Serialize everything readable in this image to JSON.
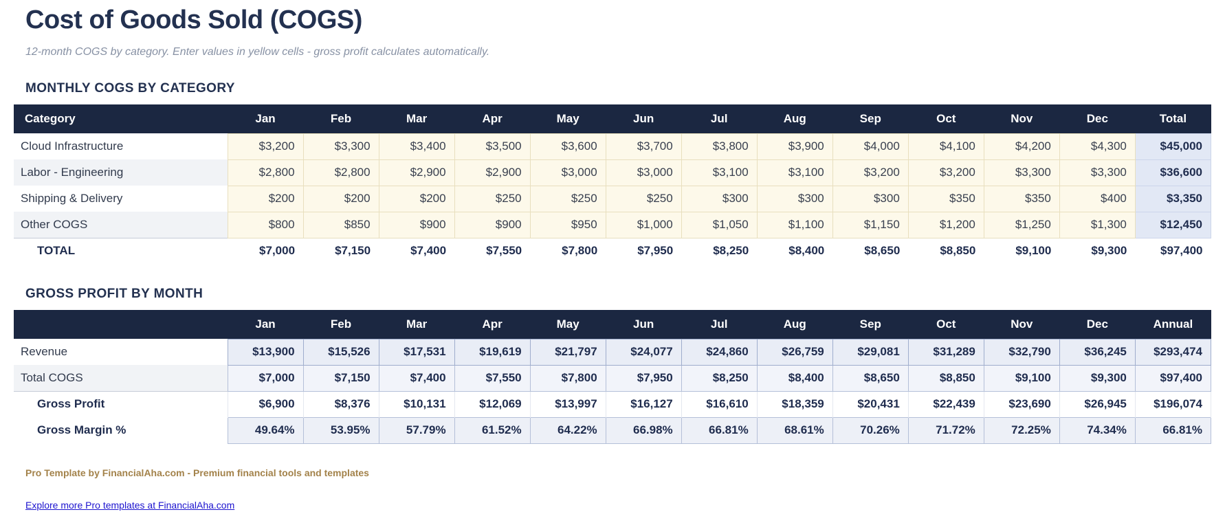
{
  "page": {
    "title": "Cost of Goods Sold (COGS)",
    "subtitle": "12-month COGS by category. Enter values in yellow cells - gross profit calculates automatically."
  },
  "colors": {
    "header_bg": "#1b2741",
    "title_text": "#233150",
    "input_cell_bg": "#fdf9ea",
    "input_cell_border": "#e8dfbe",
    "total_column_bg": "#e2e8f5",
    "alt_row_bg": "#f1f3f6",
    "revenue_cell_bg": "#e9edf6",
    "margin_cell_bg": "#edf0f7",
    "brand_text": "#a3824a",
    "link_text": "#1d14cf"
  },
  "monthly_cogs": {
    "section_title": "MONTHLY COGS BY CATEGORY",
    "columns": [
      "Category",
      "Jan",
      "Feb",
      "Mar",
      "Apr",
      "May",
      "Jun",
      "Jul",
      "Aug",
      "Sep",
      "Oct",
      "Nov",
      "Dec",
      "Total"
    ],
    "rows": [
      {
        "kind": "cat",
        "editable": true,
        "label": "Cloud Infrastructure",
        "values": [
          "$3,200",
          "$3,300",
          "$3,400",
          "$3,500",
          "$3,600",
          "$3,700",
          "$3,800",
          "$3,900",
          "$4,000",
          "$4,100",
          "$4,200",
          "$4,300"
        ],
        "total": "$45,000"
      },
      {
        "kind": "cat",
        "editable": true,
        "label": "Labor - Engineering",
        "values": [
          "$2,800",
          "$2,800",
          "$2,900",
          "$2,900",
          "$3,000",
          "$3,000",
          "$3,100",
          "$3,100",
          "$3,200",
          "$3,200",
          "$3,300",
          "$3,300"
        ],
        "total": "$36,600"
      },
      {
        "kind": "cat",
        "editable": true,
        "label": "Shipping & Delivery",
        "values": [
          "$200",
          "$200",
          "$200",
          "$250",
          "$250",
          "$250",
          "$300",
          "$300",
          "$300",
          "$350",
          "$350",
          "$400"
        ],
        "total": "$3,350"
      },
      {
        "kind": "cat",
        "editable": true,
        "label": "Other COGS",
        "values": [
          "$800",
          "$850",
          "$900",
          "$900",
          "$950",
          "$1,000",
          "$1,050",
          "$1,100",
          "$1,150",
          "$1,200",
          "$1,250",
          "$1,300"
        ],
        "total": "$12,450"
      },
      {
        "kind": "grand",
        "editable": false,
        "label": "TOTAL",
        "values": [
          "$7,000",
          "$7,150",
          "$7,400",
          "$7,550",
          "$7,800",
          "$7,950",
          "$8,250",
          "$8,400",
          "$8,650",
          "$8,850",
          "$9,100",
          "$9,300"
        ],
        "total": "$97,400"
      }
    ]
  },
  "gross_profit": {
    "section_title": "GROSS PROFIT BY MONTH",
    "columns": [
      "",
      "Jan",
      "Feb",
      "Mar",
      "Apr",
      "May",
      "Jun",
      "Jul",
      "Aug",
      "Sep",
      "Oct",
      "Nov",
      "Dec",
      "Annual"
    ],
    "rows": [
      {
        "kind": "revenue",
        "editable": false,
        "label": "Revenue",
        "values": [
          "$13,900",
          "$15,526",
          "$17,531",
          "$19,619",
          "$21,797",
          "$24,077",
          "$24,860",
          "$26,759",
          "$29,081",
          "$31,289",
          "$32,790",
          "$36,245"
        ],
        "total": "$293,474"
      },
      {
        "kind": "cogs",
        "editable": false,
        "label": "Total COGS",
        "values": [
          "$7,000",
          "$7,150",
          "$7,400",
          "$7,550",
          "$7,800",
          "$7,950",
          "$8,250",
          "$8,400",
          "$8,650",
          "$8,850",
          "$9,100",
          "$9,300"
        ],
        "total": "$97,400"
      },
      {
        "kind": "profit",
        "editable": false,
        "label": "Gross Profit",
        "values": [
          "$6,900",
          "$8,376",
          "$10,131",
          "$12,069",
          "$13,997",
          "$16,127",
          "$16,610",
          "$18,359",
          "$20,431",
          "$22,439",
          "$23,690",
          "$26,945"
        ],
        "total": "$196,074"
      },
      {
        "kind": "margin",
        "editable": false,
        "label": "Gross Margin %",
        "values": [
          "49.64%",
          "53.95%",
          "57.79%",
          "61.52%",
          "64.22%",
          "66.98%",
          "66.81%",
          "68.61%",
          "70.26%",
          "71.72%",
          "72.25%",
          "74.34%"
        ],
        "total": "66.81%"
      }
    ]
  },
  "footer": {
    "brand": "Pro Template by FinancialAha.com - Premium financial tools and templates",
    "link": "Explore more Pro templates at FinancialAha.com"
  }
}
